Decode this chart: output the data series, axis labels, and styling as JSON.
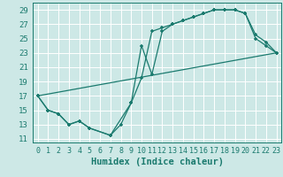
{
  "xlabel": "Humidex (Indice chaleur)",
  "bg_color": "#cde8e6",
  "grid_color": "#b8d8d5",
  "line_color": "#1a7a6e",
  "xlim": [
    -0.5,
    23.5
  ],
  "ylim": [
    10.5,
    30.0
  ],
  "xticks": [
    0,
    1,
    2,
    3,
    4,
    5,
    6,
    7,
    8,
    9,
    10,
    11,
    12,
    13,
    14,
    15,
    16,
    17,
    18,
    19,
    20,
    21,
    22,
    23
  ],
  "yticks": [
    11,
    13,
    15,
    17,
    19,
    21,
    23,
    25,
    27,
    29
  ],
  "line1_x": [
    0,
    1,
    2,
    3,
    4,
    5,
    7,
    8,
    9,
    10,
    11,
    12,
    13,
    14,
    15,
    16,
    17,
    18,
    19,
    20,
    21,
    22,
    23
  ],
  "line1_y": [
    17,
    15,
    14.5,
    13,
    13.5,
    12.5,
    11.5,
    13,
    16,
    24,
    20,
    26,
    27,
    27.5,
    28,
    28.5,
    29,
    29,
    29,
    28.5,
    25,
    24,
    23
  ],
  "line2_x": [
    0,
    1,
    2,
    3,
    4,
    5,
    7,
    9,
    10,
    11,
    12,
    13,
    14,
    15,
    16,
    17,
    18,
    19,
    20,
    21,
    22,
    23
  ],
  "line2_y": [
    17,
    15,
    14.5,
    13,
    13.5,
    12.5,
    11.5,
    16,
    19.5,
    26,
    26.5,
    27,
    27.5,
    28,
    28.5,
    29,
    29,
    29,
    28.5,
    25.5,
    24.5,
    23
  ],
  "line3_x": [
    0,
    23
  ],
  "line3_y": [
    17,
    23
  ]
}
